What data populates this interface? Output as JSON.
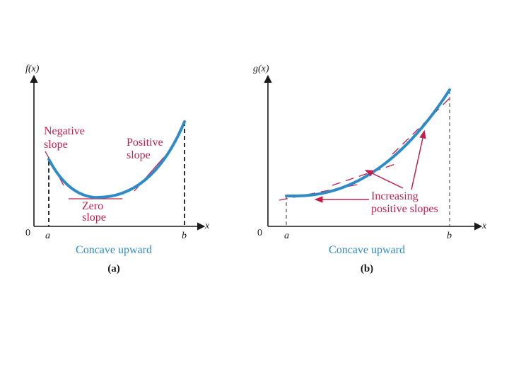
{
  "panel_a": {
    "y_label": "f(x)",
    "x_label": "x",
    "origin": "0",
    "a_label": "a",
    "b_label": "b",
    "negative_slope": [
      "Negative",
      "slope"
    ],
    "positive_slope": [
      "Positive",
      "slope"
    ],
    "zero_slope": [
      "Zero",
      "slope"
    ],
    "concavity": "Concave upward",
    "caption": "(a)"
  },
  "panel_b": {
    "y_label": "g(x)",
    "x_label": "x",
    "origin": "0",
    "a_label": "a",
    "b_label": "b",
    "increasing_slopes": [
      "Increasing",
      "positive slopes"
    ],
    "concavity": "Concave upward",
    "caption": "(b)"
  },
  "colors": {
    "curve": "#2e8bc9",
    "annotation": "#c41e4a",
    "axis": "#1a1a1a"
  }
}
